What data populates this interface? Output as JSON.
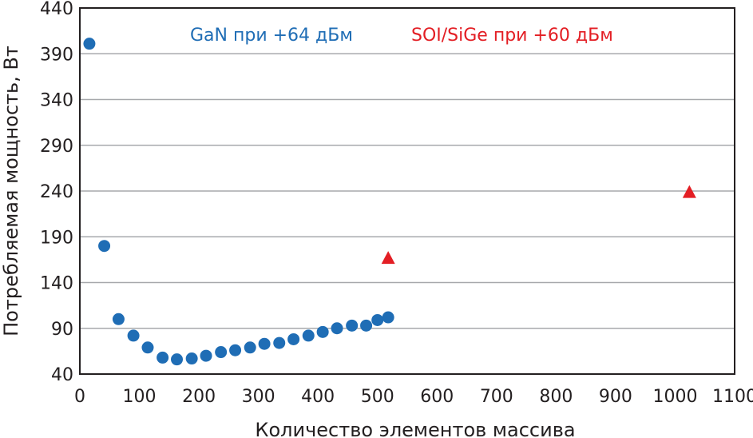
{
  "chart_data": {
    "type": "scatter",
    "xlabel": "Количество элементов массива",
    "ylabel": "Потребляемая мощность, Вт",
    "xlim": [
      0,
      1100
    ],
    "ylim": [
      40,
      440
    ],
    "xticks": [
      0,
      100,
      200,
      300,
      400,
      500,
      600,
      700,
      800,
      900,
      1000,
      1100
    ],
    "yticks": [
      40,
      90,
      140,
      190,
      240,
      290,
      340,
      390,
      440
    ],
    "grid": "horizontal",
    "series": [
      {
        "name": "GaN при +64 дБм",
        "color": "#1f6db5",
        "marker": "circle",
        "points": [
          [
            16,
            401
          ],
          [
            41,
            180
          ],
          [
            65,
            100
          ],
          [
            90,
            82
          ],
          [
            114,
            69
          ],
          [
            139,
            58
          ],
          [
            163,
            56
          ],
          [
            188,
            57
          ],
          [
            212,
            60
          ],
          [
            237,
            64
          ],
          [
            261,
            66
          ],
          [
            286,
            69
          ],
          [
            310,
            73
          ],
          [
            335,
            74
          ],
          [
            359,
            78
          ],
          [
            384,
            82
          ],
          [
            408,
            86
          ],
          [
            432,
            90
          ],
          [
            457,
            93
          ],
          [
            481,
            93
          ],
          [
            500,
            99
          ],
          [
            518,
            102
          ]
        ]
      },
      {
        "name": "SOI/SiGe при +60 дБм",
        "color": "#e31e24",
        "marker": "triangle",
        "points": [
          [
            518,
            167
          ],
          [
            1024,
            239
          ]
        ]
      }
    ]
  }
}
